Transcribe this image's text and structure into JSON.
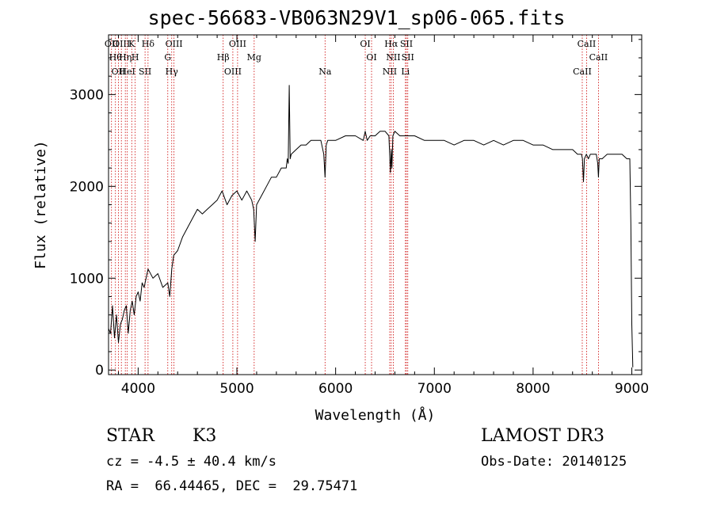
{
  "chart_data": {
    "type": "line",
    "title": "spec-56683-VB063N29V1_sp06-065.fits",
    "xlabel": "Wavelength (Å)",
    "ylabel": "Flux (relative)",
    "xlim": [
      3700,
      9100
    ],
    "ylim": [
      -50,
      3650
    ],
    "x_ticks": [
      4000,
      5000,
      6000,
      7000,
      8000,
      9000
    ],
    "x_tick_labels": [
      "4000",
      "5000",
      "6000",
      "7000",
      "8000",
      "9000"
    ],
    "y_ticks": [
      0,
      1000,
      2000,
      3000
    ],
    "y_tick_labels": [
      "0",
      "1000",
      "2000",
      "3000"
    ],
    "grid": false,
    "series": [
      {
        "name": "flux",
        "x": [
          3700,
          3720,
          3740,
          3760,
          3780,
          3800,
          3820,
          3840,
          3860,
          3880,
          3900,
          3920,
          3940,
          3960,
          3980,
          4000,
          4020,
          4040,
          4060,
          4080,
          4100,
          4150,
          4200,
          4250,
          4300,
          4320,
          4340,
          4360,
          4400,
          4450,
          4500,
          4550,
          4600,
          4650,
          4700,
          4750,
          4800,
          4850,
          4900,
          4950,
          5000,
          5050,
          5100,
          5150,
          5170,
          5185,
          5200,
          5250,
          5300,
          5350,
          5400,
          5450,
          5500,
          5510,
          5520,
          5530,
          5540,
          5550,
          5600,
          5650,
          5700,
          5750,
          5800,
          5850,
          5880,
          5893,
          5905,
          5920,
          5950,
          6000,
          6100,
          6200,
          6280,
          6300,
          6320,
          6350,
          6400,
          6450,
          6500,
          6540,
          6555,
          6563,
          6570,
          6580,
          6600,
          6650,
          6700,
          6750,
          6800,
          6900,
          7000,
          7100,
          7200,
          7300,
          7400,
          7500,
          7600,
          7700,
          7800,
          7900,
          8000,
          8100,
          8200,
          8300,
          8400,
          8450,
          8490,
          8500,
          8510,
          8520,
          8540,
          8560,
          8580,
          8600,
          8640,
          8655,
          8662,
          8670,
          8700,
          8750,
          8800,
          8850,
          8900,
          8950,
          8980,
          8990,
          9000,
          9010
        ],
        "y": [
          450,
          400,
          700,
          350,
          600,
          300,
          500,
          550,
          650,
          700,
          400,
          650,
          750,
          600,
          800,
          850,
          750,
          950,
          900,
          1000,
          1100,
          1000,
          1050,
          900,
          950,
          800,
          1100,
          1250,
          1300,
          1450,
          1550,
          1650,
          1750,
          1700,
          1750,
          1800,
          1850,
          1950,
          1800,
          1900,
          1950,
          1850,
          1950,
          1850,
          1750,
          1400,
          1800,
          1900,
          2000,
          2100,
          2100,
          2200,
          2200,
          2300,
          2250,
          3100,
          2300,
          2350,
          2400,
          2450,
          2450,
          2500,
          2500,
          2500,
          2350,
          2100,
          2450,
          2500,
          2500,
          2500,
          2550,
          2550,
          2500,
          2600,
          2500,
          2550,
          2550,
          2600,
          2600,
          2550,
          2150,
          2400,
          2200,
          2550,
          2600,
          2550,
          2550,
          2550,
          2550,
          2500,
          2500,
          2500,
          2450,
          2500,
          2500,
          2450,
          2500,
          2450,
          2500,
          2500,
          2450,
          2450,
          2400,
          2400,
          2400,
          2350,
          2350,
          2300,
          2050,
          2300,
          2350,
          2300,
          2350,
          2350,
          2350,
          2250,
          2100,
          2300,
          2300,
          2350,
          2350,
          2350,
          2350,
          2300,
          2300,
          1600,
          500,
          30
        ]
      }
    ],
    "lines": [
      {
        "x": 3730,
        "label": "OII"
      },
      {
        "x": 3770,
        "label": "Hθ"
      },
      {
        "x": 3800,
        "label": "OII"
      },
      {
        "x": 3830,
        "label": "OIII"
      },
      {
        "x": 3870,
        "label": "Hη"
      },
      {
        "x": 3890,
        "label": "HeI"
      },
      {
        "x": 3935,
        "label": "K"
      },
      {
        "x": 3970,
        "label": "H"
      },
      {
        "x": 4070,
        "label": "SII"
      },
      {
        "x": 4100,
        "label": "Hδ"
      },
      {
        "x": 4300,
        "label": "G"
      },
      {
        "x": 4340,
        "label": "Hγ"
      },
      {
        "x": 4363,
        "label": "OIII"
      },
      {
        "x": 4861,
        "label": "Hβ"
      },
      {
        "x": 4959,
        "label": "OIII"
      },
      {
        "x": 5007,
        "label": "OIII"
      },
      {
        "x": 5175,
        "label": "Mg"
      },
      {
        "x": 5893,
        "label": "Na"
      },
      {
        "x": 6300,
        "label": "OI"
      },
      {
        "x": 6364,
        "label": "OI"
      },
      {
        "x": 6548,
        "label": "NII"
      },
      {
        "x": 6563,
        "label": "Hα"
      },
      {
        "x": 6584,
        "label": "NII"
      },
      {
        "x": 6707,
        "label": "Li"
      },
      {
        "x": 6717,
        "label": "SII"
      },
      {
        "x": 6731,
        "label": "SII"
      },
      {
        "x": 8498,
        "label": "CaII"
      },
      {
        "x": 8542,
        "label": "CaII"
      },
      {
        "x": 8662,
        "label": "CaII"
      }
    ]
  },
  "info": {
    "class_label": "STAR",
    "subclass": "K3",
    "cz": "cz = -4.5 ± 40.4 km/s",
    "coords": "RA =  66.44465, DEC =  29.75471",
    "survey": "LAMOST DR3",
    "obs_date": "Obs-Date: 20140125"
  },
  "colors": {
    "axes": "#000000",
    "spectrum": "#000000",
    "line_markers": "#cc0000"
  }
}
